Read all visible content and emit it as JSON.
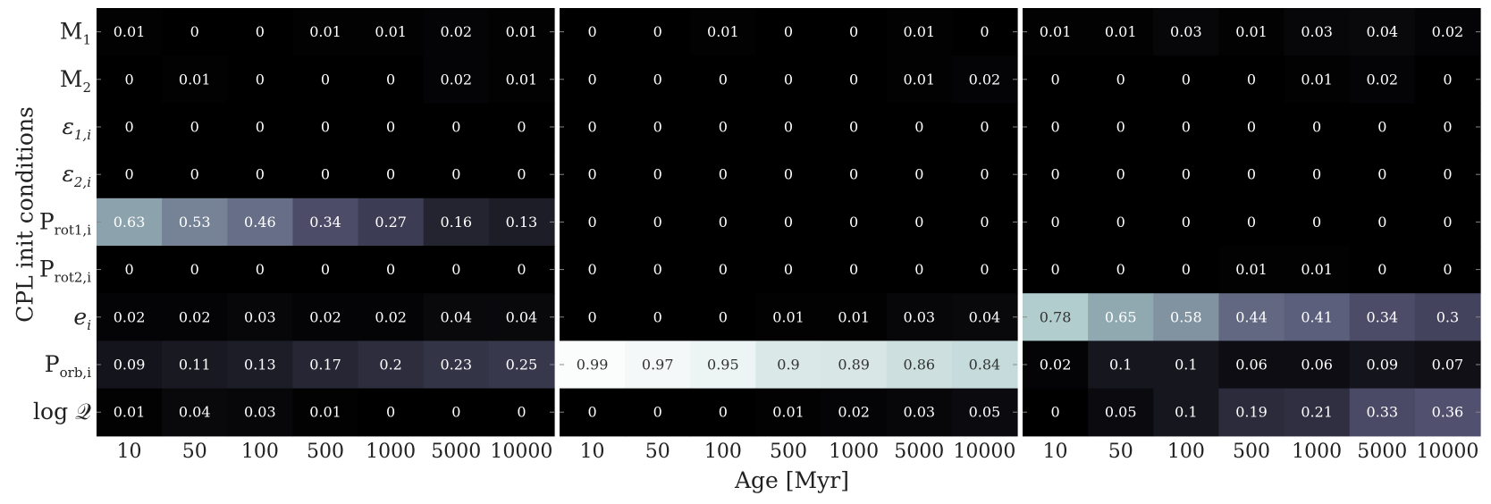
{
  "chart_data": {
    "type": "heatmap",
    "ylabel": "CPL init conditions",
    "xlabel": "Age [Myr]",
    "x_ticks": [
      "10",
      "50",
      "100",
      "500",
      "1000",
      "5000",
      "10000"
    ],
    "rows": [
      {
        "base": "M",
        "sub": "1",
        "italic": false
      },
      {
        "base": "M",
        "sub": "2",
        "italic": false
      },
      {
        "base": "ε",
        "sub": "1,i",
        "italic": true
      },
      {
        "base": "ε",
        "sub": "2,i",
        "italic": true
      },
      {
        "base": "P",
        "sub": "rot1,i",
        "italic": false
      },
      {
        "base": "P",
        "sub": "rot2,i",
        "italic": false
      },
      {
        "base": "e",
        "sub": "i",
        "italic": true
      },
      {
        "base": "P",
        "sub": "orb,i",
        "italic": false
      },
      {
        "base": "log 𝒬",
        "sub": "",
        "italic": false
      }
    ],
    "panels": [
      {
        "values": [
          [
            "0.01",
            "0",
            "0",
            "0.01",
            "0.01",
            "0.02",
            "0.01"
          ],
          [
            "0",
            "0.01",
            "0",
            "0",
            "0",
            "0.02",
            "0.01"
          ],
          [
            "0",
            "0",
            "0",
            "0",
            "0",
            "0",
            "0"
          ],
          [
            "0",
            "0",
            "0",
            "0",
            "0",
            "0",
            "0"
          ],
          [
            "0.63",
            "0.53",
            "0.46",
            "0.34",
            "0.27",
            "0.16",
            "0.13"
          ],
          [
            "0",
            "0",
            "0",
            "0",
            "0",
            "0",
            "0"
          ],
          [
            "0.02",
            "0.02",
            "0.03",
            "0.02",
            "0.02",
            "0.04",
            "0.04"
          ],
          [
            "0.09",
            "0.11",
            "0.13",
            "0.17",
            "0.2",
            "0.23",
            "0.25"
          ],
          [
            "0.01",
            "0.04",
            "0.03",
            "0.01",
            "0",
            "0",
            "0"
          ]
        ]
      },
      {
        "values": [
          [
            "0",
            "0",
            "0.01",
            "0",
            "0",
            "0.01",
            "0"
          ],
          [
            "0",
            "0",
            "0",
            "0",
            "0",
            "0.01",
            "0.02"
          ],
          [
            "0",
            "0",
            "0",
            "0",
            "0",
            "0",
            "0"
          ],
          [
            "0",
            "0",
            "0",
            "0",
            "0",
            "0",
            "0"
          ],
          [
            "0",
            "0",
            "0",
            "0",
            "0",
            "0",
            "0"
          ],
          [
            "0",
            "0",
            "0",
            "0",
            "0",
            "0",
            "0"
          ],
          [
            "0",
            "0",
            "0",
            "0.01",
            "0.01",
            "0.03",
            "0.04"
          ],
          [
            "0.99",
            "0.97",
            "0.95",
            "0.9",
            "0.89",
            "0.86",
            "0.84"
          ],
          [
            "0",
            "0",
            "0",
            "0.01",
            "0.02",
            "0.03",
            "0.05"
          ]
        ]
      },
      {
        "values": [
          [
            "0.01",
            "0.01",
            "0.03",
            "0.01",
            "0.03",
            "0.04",
            "0.02"
          ],
          [
            "0",
            "0",
            "0",
            "0",
            "0.01",
            "0.02",
            "0"
          ],
          [
            "0",
            "0",
            "0",
            "0",
            "0",
            "0",
            "0"
          ],
          [
            "0",
            "0",
            "0",
            "0",
            "0",
            "0",
            "0"
          ],
          [
            "0",
            "0",
            "0",
            "0",
            "0",
            "0",
            "0"
          ],
          [
            "0",
            "0",
            "0",
            "0.01",
            "0.01",
            "0",
            "0"
          ],
          [
            "0.78",
            "0.65",
            "0.58",
            "0.44",
            "0.41",
            "0.34",
            "0.3"
          ],
          [
            "0.02",
            "0.1",
            "0.1",
            "0.06",
            "0.06",
            "0.09",
            "0.07"
          ],
          [
            "0",
            "0.05",
            "0.1",
            "0.19",
            "0.21",
            "0.33",
            "0.36"
          ]
        ]
      }
    ],
    "colormap": {
      "name": "bone",
      "vmin": 0,
      "vmax": 1
    },
    "low_text_color": "#ffffff",
    "high_text_color": "#333333",
    "grid": false
  }
}
